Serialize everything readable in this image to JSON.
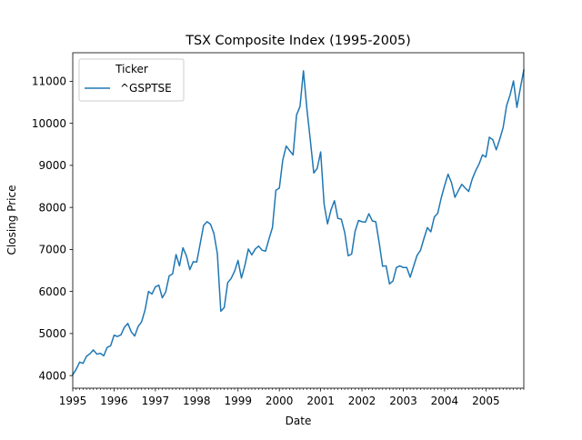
{
  "chart_data": {
    "type": "line",
    "title": "TSX Composite Index (1995-2005)",
    "xlabel": "Date",
    "ylabel": "Closing Price",
    "x_tick_labels": [
      "1995",
      "1996",
      "1997",
      "1998",
      "1999",
      "2000",
      "2001",
      "2002",
      "2003",
      "2004",
      "2005"
    ],
    "y_tick_labels": [
      "4000",
      "5000",
      "6000",
      "7000",
      "8000",
      "9000",
      "10000",
      "11000"
    ],
    "xlim": [
      "1995-01",
      "2005-12"
    ],
    "ylim": [
      3700,
      11680
    ],
    "grid": false,
    "legend": {
      "title": "Ticker",
      "position": "top-left"
    },
    "series": [
      {
        "name": "^GSPTSE",
        "color": "#1f77b4",
        "x": [
          "1995-01",
          "1995-02",
          "1995-03",
          "1995-04",
          "1995-05",
          "1995-06",
          "1995-07",
          "1995-08",
          "1995-09",
          "1995-10",
          "1995-11",
          "1995-12",
          "1996-01",
          "1996-02",
          "1996-03",
          "1996-04",
          "1996-05",
          "1996-06",
          "1996-07",
          "1996-08",
          "1996-09",
          "1996-10",
          "1996-11",
          "1996-12",
          "1997-01",
          "1997-02",
          "1997-03",
          "1997-04",
          "1997-05",
          "1997-06",
          "1997-07",
          "1997-08",
          "1997-09",
          "1997-10",
          "1997-11",
          "1997-12",
          "1998-01",
          "1998-02",
          "1998-03",
          "1998-04",
          "1998-05",
          "1998-06",
          "1998-07",
          "1998-08",
          "1998-09",
          "1998-10",
          "1998-11",
          "1998-12",
          "1999-01",
          "1999-02",
          "1999-03",
          "1999-04",
          "1999-05",
          "1999-06",
          "1999-07",
          "1999-08",
          "1999-09",
          "1999-10",
          "1999-11",
          "1999-12",
          "2000-01",
          "2000-02",
          "2000-03",
          "2000-04",
          "2000-05",
          "2000-06",
          "2000-07",
          "2000-08",
          "2000-09",
          "2000-10",
          "2000-11",
          "2000-12",
          "2001-01",
          "2001-02",
          "2001-03",
          "2001-04",
          "2001-05",
          "2001-06",
          "2001-07",
          "2001-08",
          "2001-09",
          "2001-10",
          "2001-11",
          "2001-12",
          "2002-01",
          "2002-02",
          "2002-03",
          "2002-04",
          "2002-05",
          "2002-06",
          "2002-07",
          "2002-08",
          "2002-09",
          "2002-10",
          "2002-11",
          "2002-12",
          "2003-01",
          "2003-02",
          "2003-03",
          "2003-04",
          "2003-05",
          "2003-06",
          "2003-07",
          "2003-08",
          "2003-09",
          "2003-10",
          "2003-11",
          "2003-12",
          "2004-01",
          "2004-02",
          "2004-03",
          "2004-04",
          "2004-05",
          "2004-06",
          "2004-07",
          "2004-08",
          "2004-09",
          "2004-10",
          "2004-11",
          "2004-12",
          "2005-01",
          "2005-02",
          "2005-03",
          "2005-04",
          "2005-05",
          "2005-06",
          "2005-07",
          "2005-08",
          "2005-09",
          "2005-10",
          "2005-11",
          "2005-12"
        ],
        "values": [
          4020,
          4150,
          4320,
          4290,
          4460,
          4520,
          4610,
          4510,
          4530,
          4470,
          4670,
          4710,
          4960,
          4930,
          4970,
          5150,
          5240,
          5040,
          4940,
          5170,
          5280,
          5560,
          6000,
          5940,
          6110,
          6150,
          5850,
          5990,
          6370,
          6420,
          6880,
          6610,
          7040,
          6850,
          6520,
          6710,
          6700,
          7130,
          7570,
          7660,
          7600,
          7380,
          6900,
          5530,
          5620,
          6210,
          6310,
          6480,
          6740,
          6320,
          6620,
          7010,
          6870,
          7010,
          7080,
          6980,
          6960,
          7250,
          7520,
          8410,
          8460,
          9130,
          9460,
          9350,
          9250,
          10200,
          10400,
          11250,
          10350,
          9600,
          8820,
          8930,
          9320,
          8080,
          7610,
          7940,
          8160,
          7740,
          7720,
          7400,
          6850,
          6890,
          7430,
          7690,
          7660,
          7650,
          7850,
          7680,
          7660,
          7160,
          6600,
          6610,
          6180,
          6250,
          6570,
          6610,
          6570,
          6570,
          6340,
          6600,
          6860,
          6980,
          7260,
          7520,
          7420,
          7770,
          7860,
          8220,
          8520,
          8790,
          8590,
          8240,
          8400,
          8550,
          8460,
          8380,
          8670,
          8870,
          9030,
          9250,
          9200,
          9670,
          9610,
          9370,
          9620,
          9900,
          10420,
          10670,
          11010,
          10380,
          10840,
          11270
        ]
      }
    ]
  }
}
